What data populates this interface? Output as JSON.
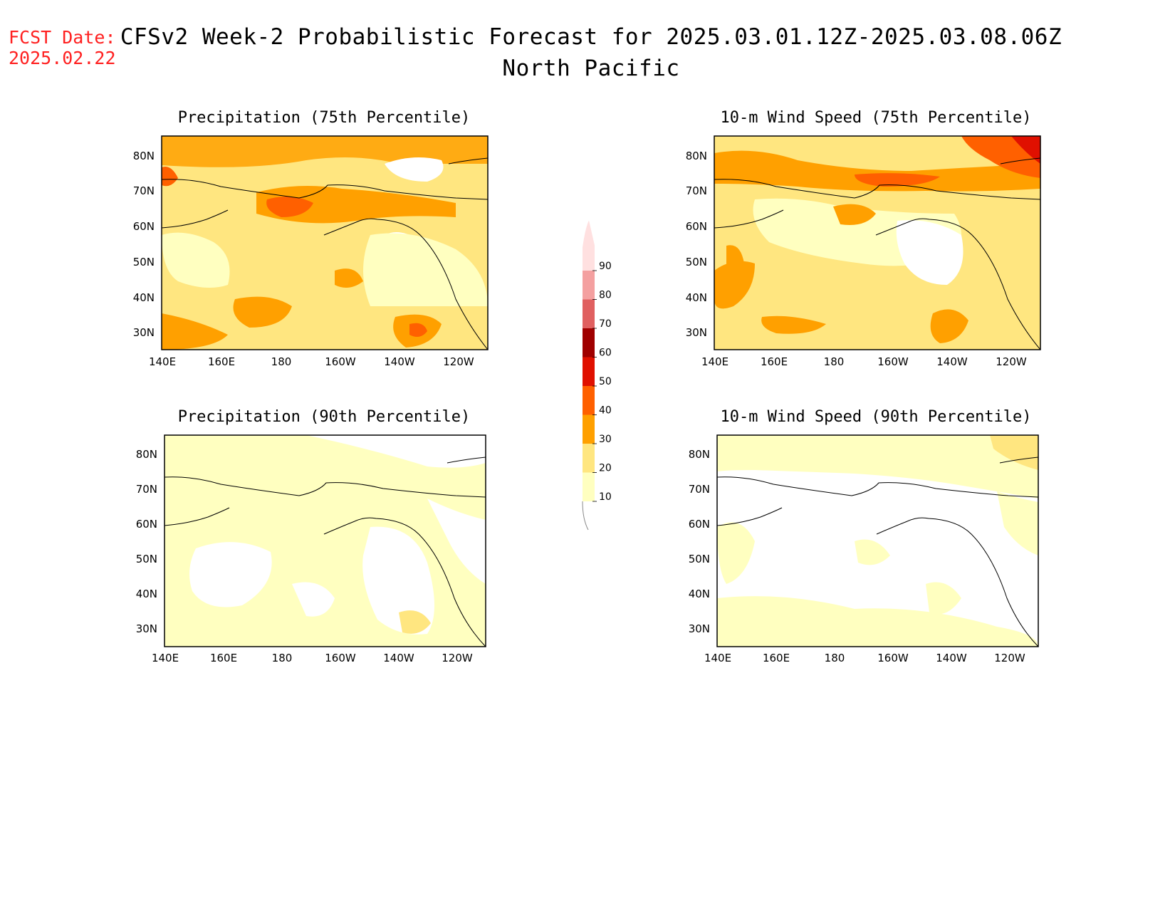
{
  "header": {
    "fcst_line1": "FCST Date:",
    "fcst_line2": "2025.02.22",
    "title_line1": "CFSv2 Week-2 Probabilistic Forecast for 2025.03.01.12Z-2025.03.08.06Z",
    "title_line2": "North Pacific"
  },
  "panels": [
    {
      "title": "Precipitation (75th Percentile)",
      "level": "high"
    },
    {
      "title": "10-m Wind Speed (75th Percentile)",
      "level": "high"
    },
    {
      "title": "Precipitation (90th Percentile)",
      "level": "low"
    },
    {
      "title": "10-m Wind Speed (90th Percentile)",
      "level": "low"
    }
  ],
  "axes": {
    "lon_labels": [
      "140E",
      "160E",
      "180",
      "160W",
      "140W",
      "120W"
    ],
    "lat_labels": [
      "80N",
      "70N",
      "60N",
      "50N",
      "40N",
      "30N"
    ]
  },
  "colorbar": {
    "labels": [
      "10",
      "20",
      "30",
      "40",
      "50",
      "60",
      "70",
      "80",
      "90"
    ],
    "colors": [
      "#ffffc0",
      "#ffe680",
      "#ffa000",
      "#ff6000",
      "#e01000",
      "#a00000",
      "#e06060",
      "#f4a0a0",
      "#ffe0e0"
    ]
  }
}
